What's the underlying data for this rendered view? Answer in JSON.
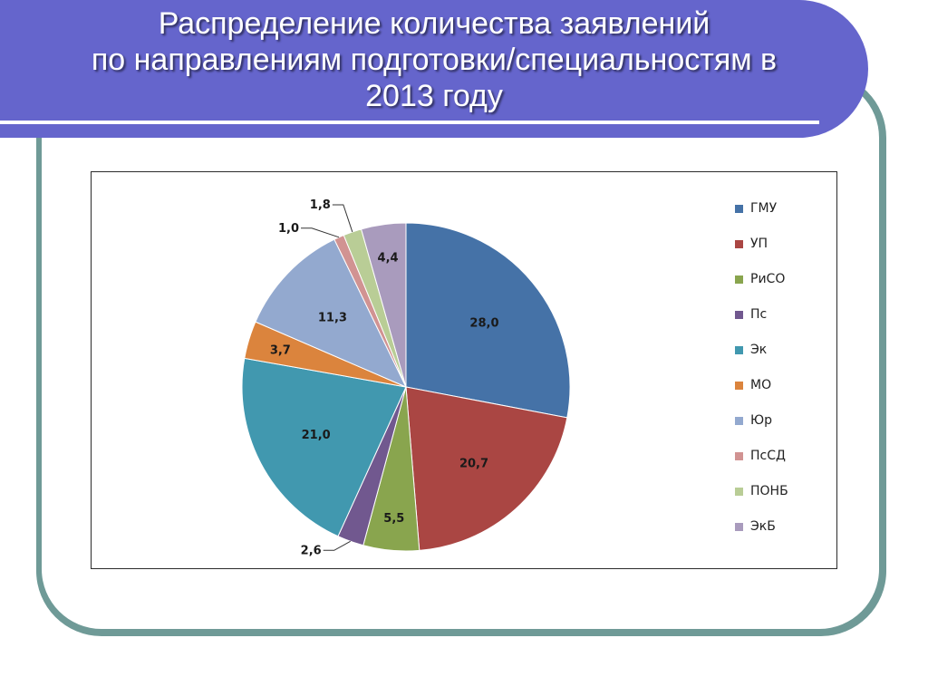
{
  "title": {
    "line1": "Распределение количества заявлений",
    "line2": "по направлениям подготовки/специальностям в",
    "line3": "2013  году"
  },
  "chart_data": {
    "type": "pie",
    "categories": [
      "ГМУ",
      "УП",
      "РиСО",
      "Пс",
      "Эк",
      "МО",
      "Юр",
      "ПсСД",
      "ПОНБ",
      "ЭкБ"
    ],
    "values": [
      28.0,
      20.7,
      5.5,
      2.6,
      21.0,
      3.7,
      11.3,
      1.0,
      1.8,
      4.4
    ],
    "labels": [
      "28,0",
      "20,7",
      "5,5",
      "2,6",
      "21,0",
      "3,7",
      "11,3",
      "1,0",
      "1,8",
      "4,4"
    ],
    "colors": [
      "#4572a7",
      "#aa4643",
      "#89a54e",
      "#71588f",
      "#4198af",
      "#db843d",
      "#93a9cf",
      "#d19392",
      "#b9cd96",
      "#a99bbd"
    ],
    "legend_position": "right"
  }
}
